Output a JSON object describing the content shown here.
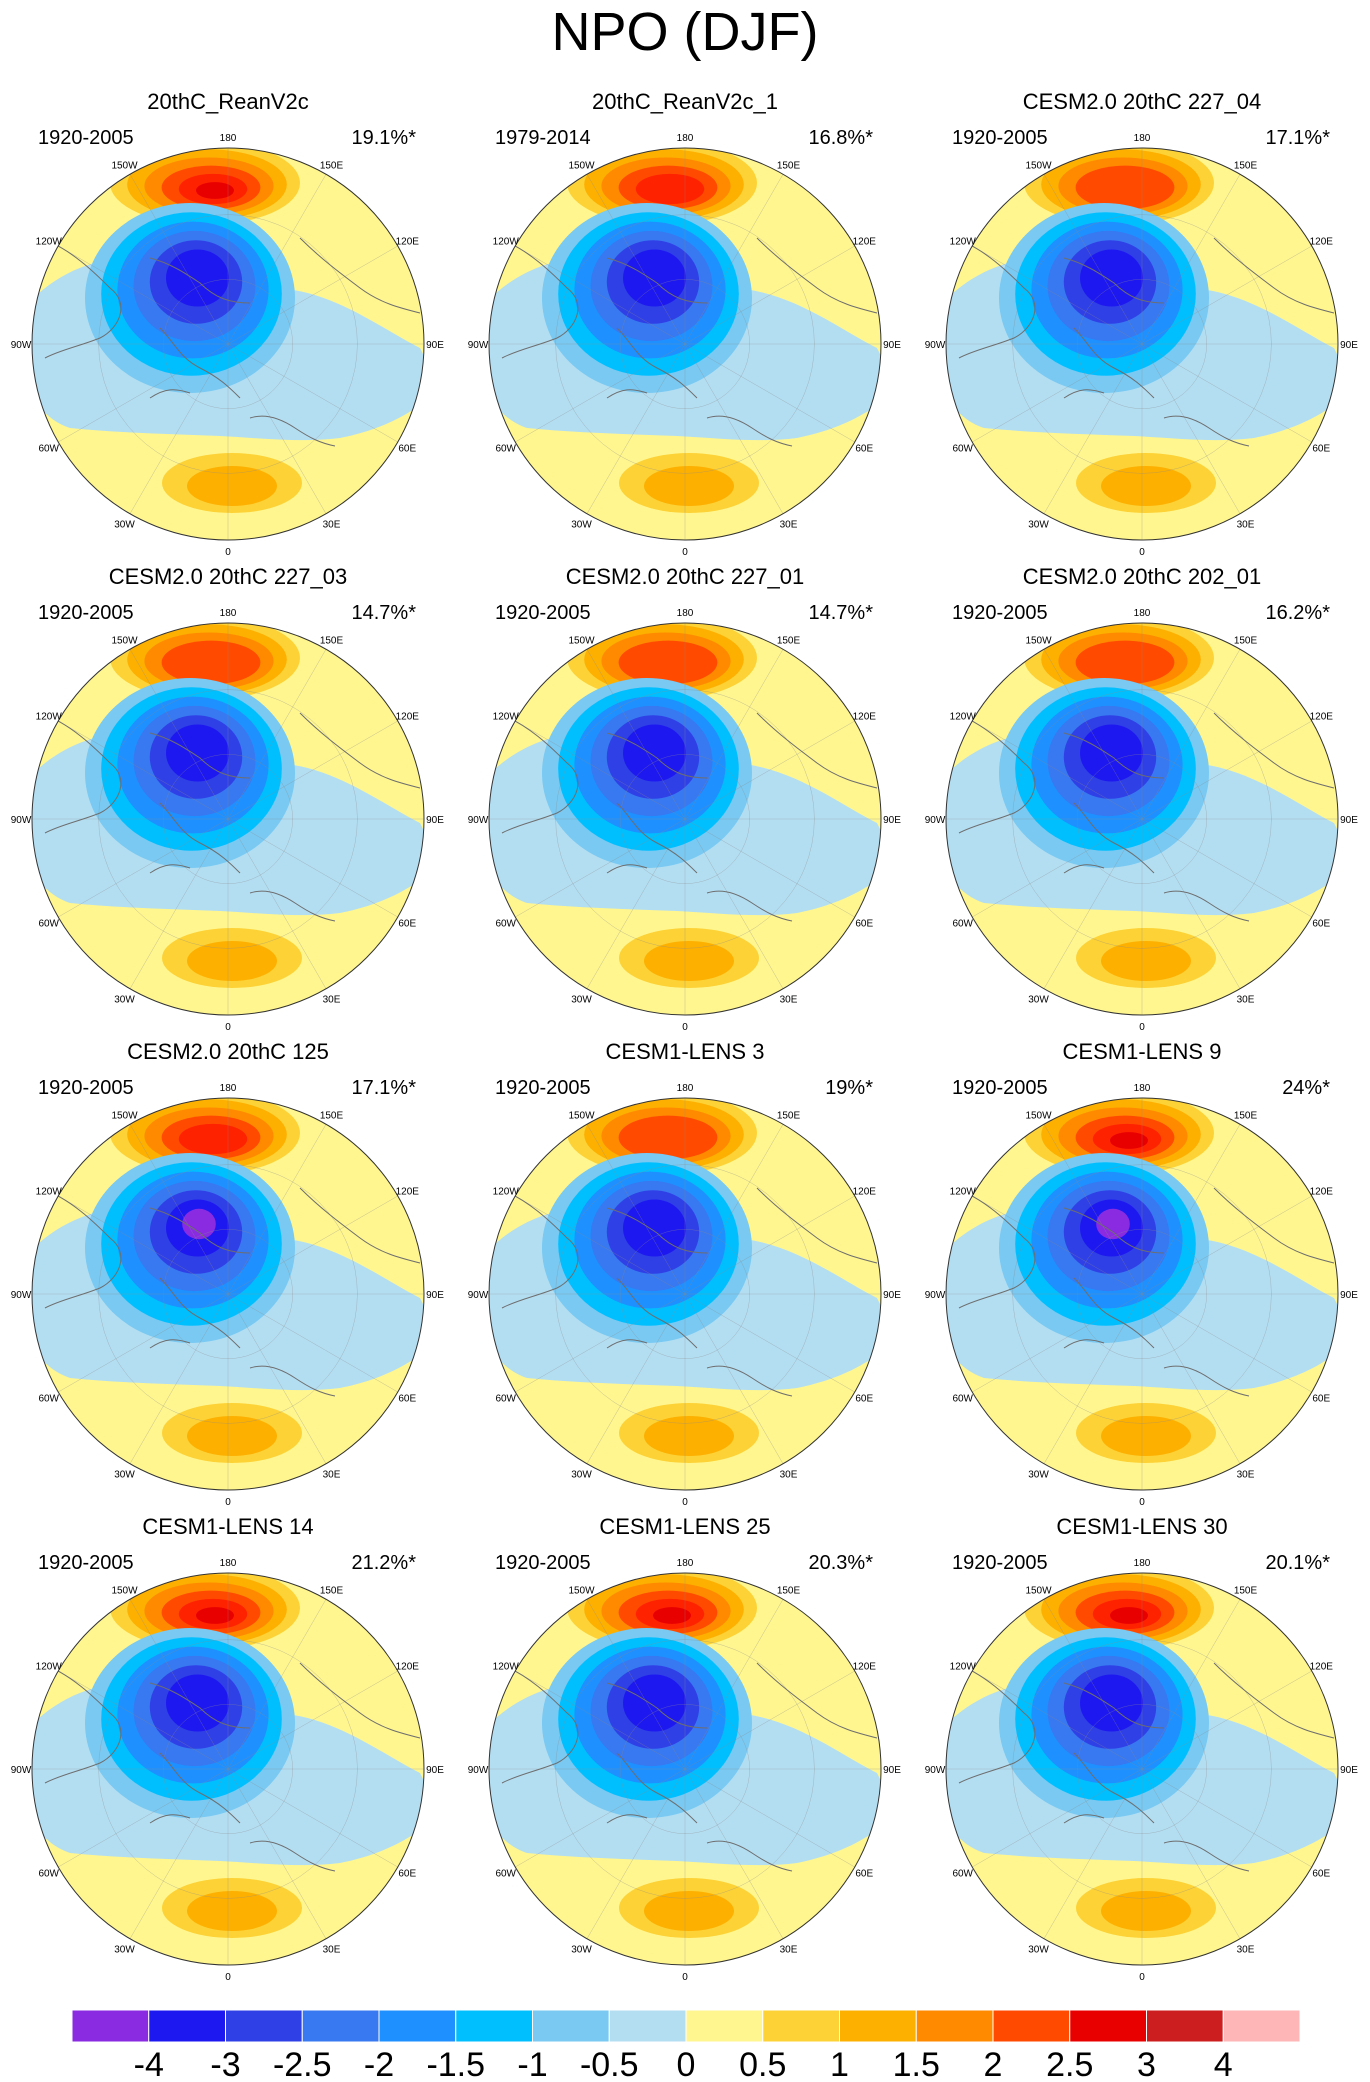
{
  "title": "NPO (DJF)",
  "colors": {
    "n4": "#8a2be2",
    "n3": "#1e18f0",
    "n25": "#2f40e6",
    "n2": "#3878f0",
    "n15": "#1e90ff",
    "n1": "#00bfff",
    "n05": "#79c9f2",
    "n0": "#b3def2",
    "p0": "#fff68f",
    "p05": "#fdd236",
    "p1": "#fdb000",
    "p15": "#ff8a00",
    "p2": "#ff4a00",
    "p25": "#ff2200",
    "p3": "#e80000",
    "p35": "#cc1e1e",
    "p4": "#ffb6b6"
  },
  "lon_labels": {
    "l180": "180",
    "l150w": "150W",
    "l150e": "150E",
    "l120w": "120W",
    "l120e": "120E",
    "l90w": "90W",
    "l90e": "90E",
    "l60w": "60W",
    "l60e": "60E",
    "l30w": "30W",
    "l30e": "30E",
    "l0": "0"
  },
  "panels": [
    {
      "title": "20thC_ReanV2c",
      "period": "1920-2005",
      "variance": "19.1%*",
      "max_pos": 3,
      "min_neg": -3
    },
    {
      "title": "20thC_ReanV2c_1",
      "period": "1979-2014",
      "variance": "16.8%*",
      "max_pos": 2.5,
      "min_neg": -3
    },
    {
      "title": "CESM2.0 20thC 227_04",
      "period": "1920-2005",
      "variance": "17.1%*",
      "max_pos": 2,
      "min_neg": -3
    },
    {
      "title": "CESM2.0 20thC 227_03",
      "period": "1920-2005",
      "variance": "14.7%*",
      "max_pos": 2,
      "min_neg": -3
    },
    {
      "title": "CESM2.0 20thC 227_01",
      "period": "1920-2005",
      "variance": "14.7%*",
      "max_pos": 2,
      "min_neg": -3
    },
    {
      "title": "CESM2.0 20thC 202_01",
      "period": "1920-2005",
      "variance": "16.2%*",
      "max_pos": 2,
      "min_neg": -3
    },
    {
      "title": "CESM2.0 20thC 125",
      "period": "1920-2005",
      "variance": "17.1%*",
      "max_pos": 2.5,
      "min_neg": -4
    },
    {
      "title": "CESM1-LENS 3",
      "period": "1920-2005",
      "variance": "19%*",
      "max_pos": 2,
      "min_neg": -3
    },
    {
      "title": "CESM1-LENS 9",
      "period": "1920-2005",
      "variance": "24%*",
      "max_pos": 3,
      "min_neg": -4
    },
    {
      "title": "CESM1-LENS 14",
      "period": "1920-2005",
      "variance": "21.2%*",
      "max_pos": 3,
      "min_neg": -3
    },
    {
      "title": "CESM1-LENS 25",
      "period": "1920-2005",
      "variance": "20.3%*",
      "max_pos": 3,
      "min_neg": -3
    },
    {
      "title": "CESM1-LENS 30",
      "period": "1920-2005",
      "variance": "20.1%*",
      "max_pos": 3,
      "min_neg": -3
    }
  ],
  "colorbar": {
    "labels": [
      "-4",
      "-3",
      "-2.5",
      "-2",
      "-1.5",
      "-1",
      "-0.5",
      "0",
      "0.5",
      "1",
      "1.5",
      "2",
      "2.5",
      "3",
      "4"
    ],
    "box_colors": [
      "#8a2be2",
      "#1e18f0",
      "#2f40e6",
      "#3878f0",
      "#1e90ff",
      "#00bfff",
      "#79c9f2",
      "#b3def2",
      "#fff68f",
      "#fdd236",
      "#fdb000",
      "#ff8a00",
      "#ff4a00",
      "#e80000",
      "#cc1e1e",
      "#ffb6b6"
    ]
  }
}
